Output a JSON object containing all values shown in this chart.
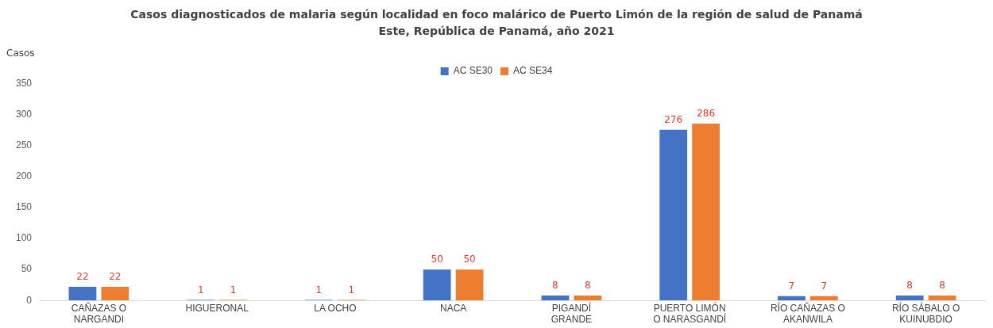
{
  "chart_data": {
    "type": "bar",
    "title": "Casos diagnosticados de malaria según localidad en foco malárico de Puerto Limón de la región de salud de Panamá Este, República de Panamá, año 2021",
    "ylabel": "Casos",
    "categories": [
      "CAÑAZAS O NARGANDI",
      "HIGUERONAL",
      "LA OCHO",
      "NACA",
      "PIGANDÍ GRANDE",
      "PUERTO LIMÓN O NARASGANDÍ",
      "RÍO CAÑAZAS O AKANWILA",
      "RÍO SÁBALO O KUINUBDIO"
    ],
    "series": [
      {
        "name": "AC SE30",
        "color": "#4472c4",
        "values": [
          22,
          1,
          1,
          50,
          8,
          276,
          7,
          8
        ]
      },
      {
        "name": "AC SE34",
        "color": "#ed7d31",
        "values": [
          22,
          1,
          1,
          50,
          8,
          286,
          7,
          8
        ]
      }
    ],
    "ylim": [
      0,
      350
    ],
    "yticks": [
      0,
      50,
      100,
      150,
      200,
      250,
      300,
      350
    ],
    "grid": false,
    "legend": "top",
    "data_labels": true
  }
}
